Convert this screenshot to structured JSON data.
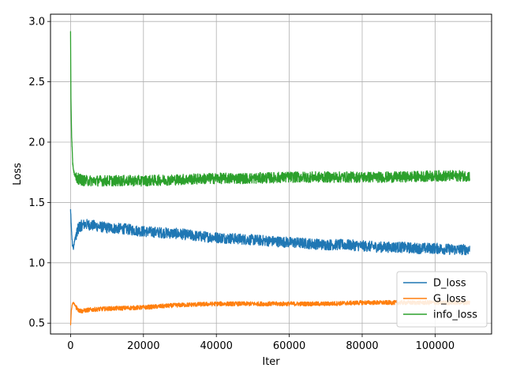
{
  "chart_data": {
    "type": "line",
    "title": "",
    "xlabel": "Iter",
    "ylabel": "Loss",
    "xlim": [
      -5500,
      115500
    ],
    "ylim": [
      0.41,
      3.06
    ],
    "x_ticks": [
      0,
      20000,
      40000,
      60000,
      80000,
      100000
    ],
    "y_ticks": [
      0.5,
      1.0,
      1.5,
      2.0,
      2.5,
      3.0
    ],
    "x_tick_labels": [
      "0",
      "20000",
      "40000",
      "60000",
      "80000",
      "100000"
    ],
    "y_tick_labels": [
      "0.5",
      "1.0",
      "1.5",
      "2.0",
      "2.5",
      "3.0"
    ],
    "grid": true,
    "legend_position": "lower-right",
    "series": [
      {
        "name": "D_loss",
        "color": "#1f77b4",
        "noise_band": 0.045,
        "x": [
          0,
          200,
          500,
          800,
          1200,
          2000,
          3000,
          4000,
          6000,
          10000,
          15000,
          20000,
          25000,
          30000,
          35000,
          40000,
          45000,
          50000,
          55000,
          60000,
          65000,
          70000,
          75000,
          80000,
          85000,
          90000,
          95000,
          100000,
          105000,
          109500
        ],
        "y": [
          1.44,
          1.3,
          1.15,
          1.12,
          1.2,
          1.28,
          1.31,
          1.32,
          1.31,
          1.29,
          1.28,
          1.26,
          1.25,
          1.24,
          1.22,
          1.21,
          1.2,
          1.19,
          1.18,
          1.17,
          1.16,
          1.15,
          1.15,
          1.14,
          1.13,
          1.13,
          1.12,
          1.12,
          1.11,
          1.11
        ]
      },
      {
        "name": "G_loss",
        "color": "#ff7f0e",
        "noise_band": 0.018,
        "x": [
          0,
          200,
          500,
          800,
          1200,
          2000,
          3000,
          5000,
          10000,
          20000,
          30000,
          40000,
          50000,
          60000,
          70000,
          80000,
          90000,
          100000,
          109500
        ],
        "y": [
          0.48,
          0.6,
          0.66,
          0.67,
          0.65,
          0.61,
          0.6,
          0.61,
          0.62,
          0.63,
          0.65,
          0.66,
          0.66,
          0.66,
          0.66,
          0.67,
          0.67,
          0.67,
          0.67
        ]
      },
      {
        "name": "info_loss",
        "color": "#2ca02c",
        "noise_band": 0.045,
        "x": [
          0,
          100,
          300,
          600,
          1000,
          1500,
          2500,
          4000,
          10000,
          20000,
          30000,
          40000,
          50000,
          60000,
          70000,
          80000,
          90000,
          100000,
          109500
        ],
        "y": [
          2.93,
          2.36,
          2.05,
          1.82,
          1.74,
          1.71,
          1.69,
          1.68,
          1.68,
          1.68,
          1.69,
          1.7,
          1.7,
          1.71,
          1.71,
          1.71,
          1.71,
          1.72,
          1.72
        ]
      }
    ]
  }
}
